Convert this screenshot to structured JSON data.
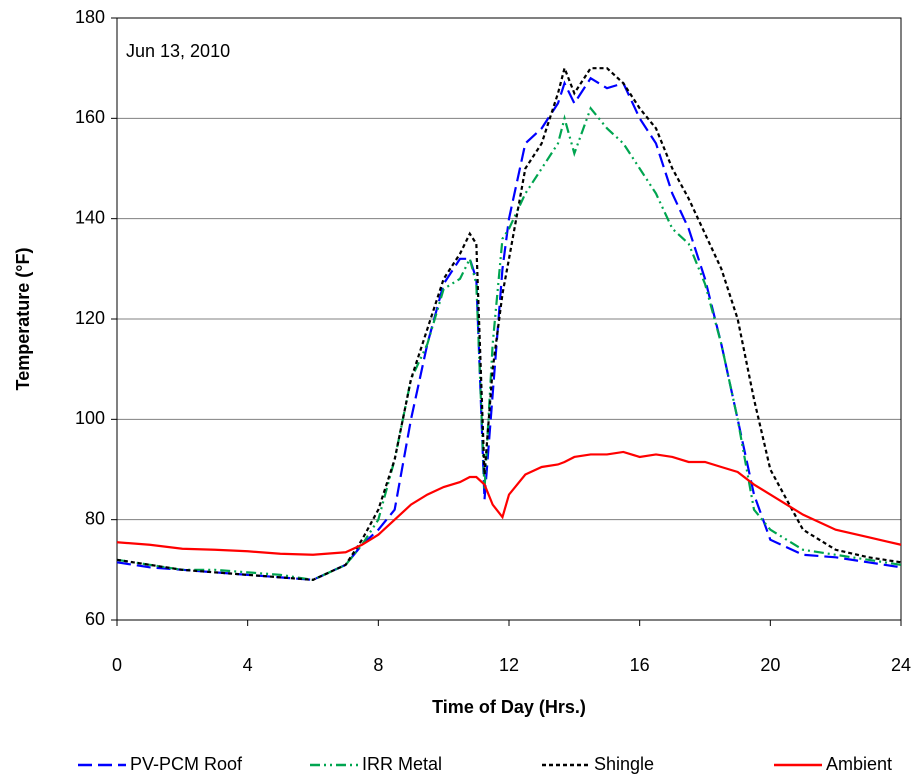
{
  "chart_data": {
    "type": "line",
    "annotation": "Jun 13, 2010",
    "x_label": "Time of Day (Hrs.)",
    "y_label": "Temperature (°F)",
    "x": [
      0,
      1,
      2,
      3,
      4,
      5,
      6,
      7,
      7.5,
      8,
      8.5,
      9,
      9.5,
      10,
      10.5,
      10.8,
      11,
      11.25,
      11.5,
      11.8,
      12,
      12.5,
      13,
      13.5,
      13.7,
      14,
      14.5,
      15,
      15.5,
      16,
      16.5,
      17,
      17.5,
      18,
      18.5,
      19,
      19.5,
      20,
      21,
      22,
      23,
      24
    ],
    "series": [
      {
        "name": "PV-PCM Roof",
        "color": "#0000ff",
        "dash": "14 6",
        "values": [
          71.5,
          70.5,
          70,
          69.5,
          69,
          68.5,
          68,
          71,
          75,
          78,
          82,
          100,
          115,
          127,
          132,
          132,
          128,
          84,
          105,
          130,
          140,
          155,
          158,
          163,
          167,
          163,
          168,
          166,
          167,
          160,
          155,
          145,
          138,
          128,
          115,
          100,
          85,
          76,
          73,
          72.5,
          71.5,
          70.5
        ]
      },
      {
        "name": "IRR Metal",
        "color": "#00a550",
        "dash": "10 4 2 4 2 4",
        "values": [
          72,
          71,
          70,
          70,
          69.5,
          69,
          68,
          71,
          75,
          80,
          92,
          108,
          115,
          126,
          128,
          132,
          127,
          86,
          115,
          136,
          138,
          145,
          150,
          155,
          160,
          153,
          162,
          158,
          155,
          150,
          145,
          138,
          135,
          127,
          115,
          100,
          82,
          78,
          74,
          73,
          72,
          71
        ]
      },
      {
        "name": "Shingle",
        "color": "#000000",
        "dash": "4 3",
        "values": [
          72,
          71,
          70,
          69.5,
          69,
          68.5,
          68,
          71,
          76,
          82,
          92,
          108,
          118,
          128,
          133,
          137,
          135,
          89,
          110,
          125,
          132,
          150,
          155,
          165,
          170,
          165,
          170,
          170,
          167,
          162,
          158,
          150,
          144,
          137,
          130,
          120,
          104,
          90,
          78,
          74,
          72.5,
          71.5
        ]
      },
      {
        "name": "Ambient",
        "color": "#ff0000",
        "dash": "none",
        "values": [
          75.5,
          75,
          74.2,
          74,
          73.7,
          73.2,
          73,
          73.5,
          75,
          77,
          80,
          83,
          85,
          86.5,
          87.5,
          88.5,
          88.5,
          87,
          83,
          80.5,
          85,
          89,
          90.5,
          91,
          91.5,
          92.5,
          93,
          93,
          93.5,
          92.5,
          93,
          92.5,
          91.5,
          91.5,
          90.5,
          89.5,
          87,
          85,
          81,
          78,
          76.5,
          75
        ]
      }
    ],
    "xlim": [
      0,
      24
    ],
    "xticks": [
      0,
      4,
      8,
      12,
      16,
      20,
      24
    ],
    "ylim": [
      60,
      180
    ],
    "yticks": [
      60,
      80,
      100,
      120,
      140,
      160,
      180
    ],
    "grid": true
  }
}
